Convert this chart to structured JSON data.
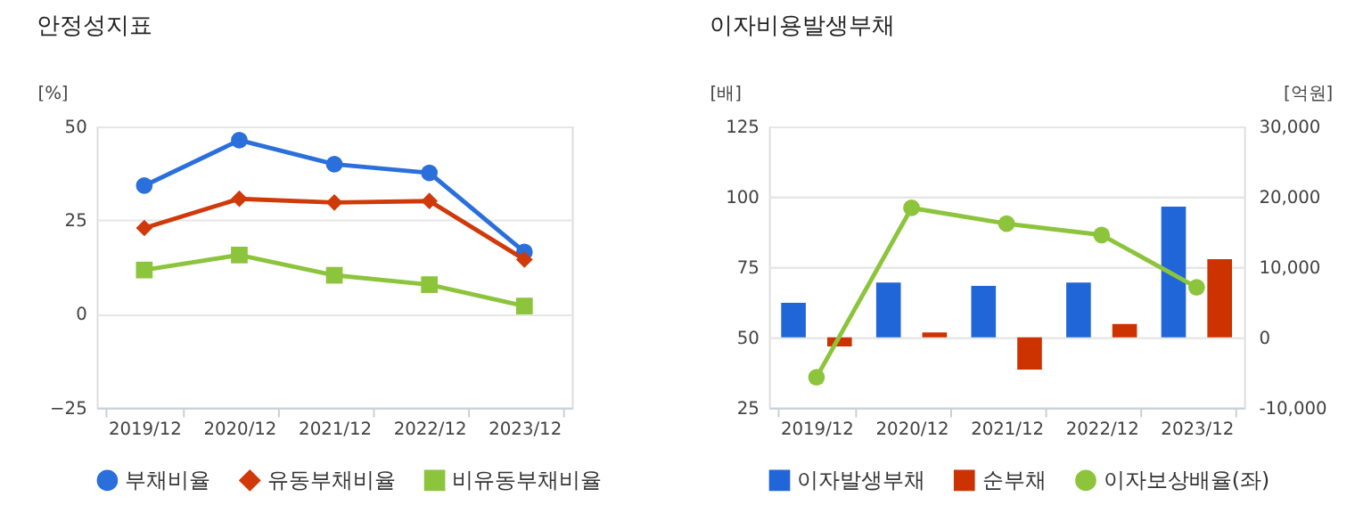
{
  "chart_data": [
    {
      "type": "line",
      "title": "안정성지표",
      "ylabel": "[%]",
      "categories": [
        "2019/12",
        "2020/12",
        "2021/12",
        "2022/12",
        "2023/12"
      ],
      "ylim": [
        -25,
        50
      ],
      "yticks": [
        -25,
        0,
        25,
        50
      ],
      "grid": "y",
      "legend": "bottom",
      "series": [
        {
          "name": "부채비율",
          "color": "#2a6fdb",
          "marker": "circle",
          "values": [
            34.2,
            46.3,
            39.9,
            37.6,
            16.5
          ]
        },
        {
          "name": "유동부채비율",
          "color": "#d03a0b",
          "marker": "diamond",
          "values": [
            22.9,
            30.7,
            29.7,
            30.1,
            14.5
          ]
        },
        {
          "name": "비유동부채비율",
          "color": "#8cc43c",
          "marker": "square",
          "values": [
            11.7,
            15.7,
            10.3,
            7.8,
            2.1
          ]
        }
      ]
    },
    {
      "type": "bar",
      "title": "이자비용발생부채",
      "ylabel": "[배]",
      "y2label": "[억원]",
      "categories": [
        "2019/12",
        "2020/12",
        "2021/12",
        "2022/12",
        "2023/12"
      ],
      "ylim": [
        25,
        125
      ],
      "yticks": [
        25,
        50,
        75,
        100,
        125
      ],
      "y2lim": [
        -10000,
        30000
      ],
      "y2ticks": [
        {
          "value": -10000,
          "label": "-10,000"
        },
        {
          "value": 0,
          "label": "0"
        },
        {
          "value": 10000,
          "label": "10,000"
        },
        {
          "value": 20000,
          "label": "20,000"
        },
        {
          "value": 30000,
          "label": "30,000"
        }
      ],
      "grid": "y",
      "legend": "bottom",
      "series": [
        {
          "name": "이자발생부채",
          "type": "bar",
          "axis": "y2",
          "color": "#2166d8",
          "values": [
            4900,
            7800,
            7300,
            7800,
            18600
          ]
        },
        {
          "name": "순부채",
          "type": "bar",
          "axis": "y2",
          "color": "#cc3300",
          "values": [
            -1300,
            700,
            -4600,
            1900,
            11100
          ]
        },
        {
          "name": "이자보상배율(좌)",
          "type": "line",
          "axis": "y",
          "color": "#8cc43c",
          "marker": "circle",
          "values": [
            35.8,
            96,
            90.4,
            86.4,
            67.8
          ]
        }
      ]
    }
  ]
}
